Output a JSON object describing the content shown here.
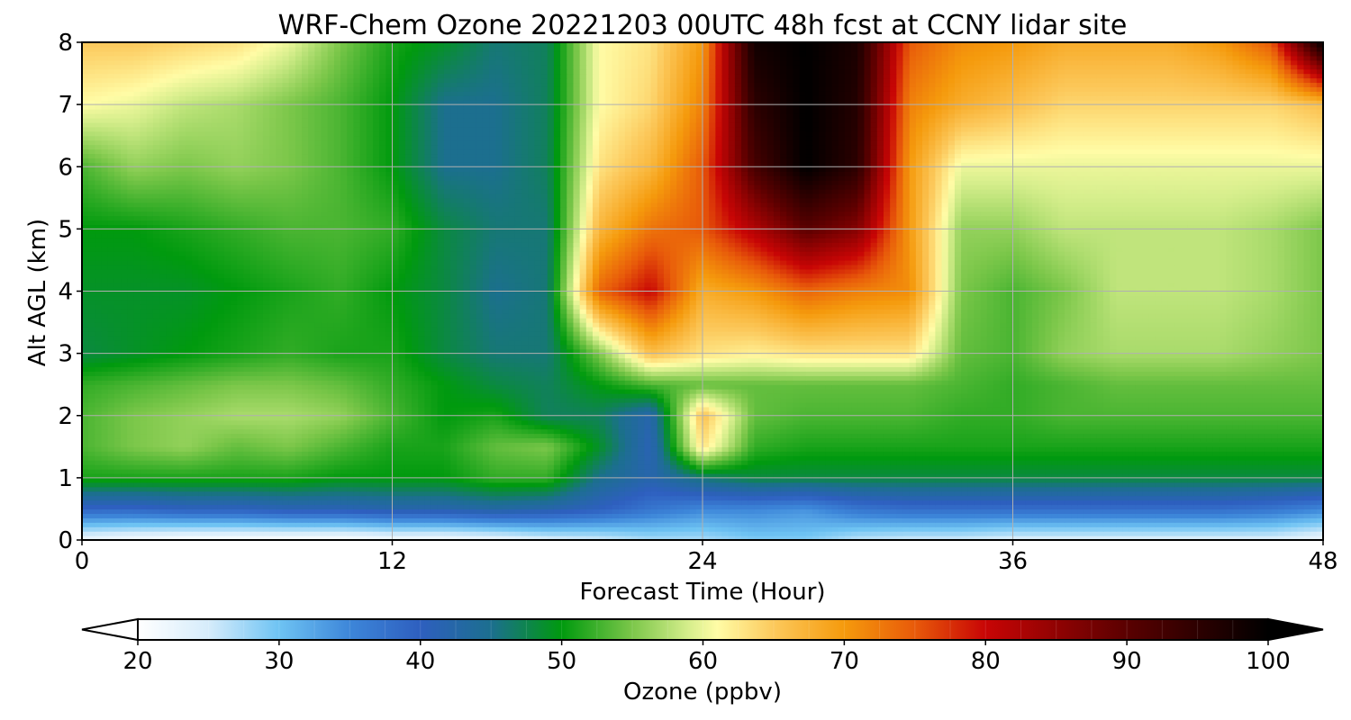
{
  "chart_data": {
    "type": "heatmap",
    "title": "WRF-Chem Ozone  20221203 00UTC 48h fcst at CCNY lidar site",
    "xlabel": "Forecast Time (Hour)",
    "ylabel": "Alt AGL (km)",
    "xlim": [
      0,
      48
    ],
    "ylim": [
      0,
      8
    ],
    "x_ticks": [
      "0",
      "12",
      "24",
      "36",
      "48"
    ],
    "y_ticks": [
      "0",
      "1",
      "2",
      "3",
      "4",
      "5",
      "6",
      "7",
      "8"
    ],
    "grid": true,
    "colorbar": {
      "label": "Ozone  (ppbv)",
      "range": [
        20,
        100
      ],
      "extend": "both",
      "ticks": [
        "20",
        "30",
        "40",
        "50",
        "60",
        "70",
        "80",
        "90",
        "100"
      ],
      "colors": [
        {
          "v": 20,
          "c": "#ffffff"
        },
        {
          "v": 25,
          "c": "#d6ecfb"
        },
        {
          "v": 30,
          "c": "#6ec3f3"
        },
        {
          "v": 35,
          "c": "#3d86d9"
        },
        {
          "v": 40,
          "c": "#2e5fbf"
        },
        {
          "v": 45,
          "c": "#1c6f8f"
        },
        {
          "v": 50,
          "c": "#009a0e"
        },
        {
          "v": 55,
          "c": "#7cc74a"
        },
        {
          "v": 59,
          "c": "#d6ee8c"
        },
        {
          "v": 61,
          "c": "#fffca6"
        },
        {
          "v": 65,
          "c": "#fcc95c"
        },
        {
          "v": 70,
          "c": "#f59a0c"
        },
        {
          "v": 75,
          "c": "#e85a0a"
        },
        {
          "v": 80,
          "c": "#c80505"
        },
        {
          "v": 90,
          "c": "#5a0000"
        },
        {
          "v": 100,
          "c": "#000000"
        }
      ]
    },
    "x": [
      0,
      2,
      4,
      6,
      8,
      10,
      12,
      14,
      16,
      18,
      20,
      22,
      24,
      26,
      28,
      30,
      32,
      34,
      36,
      38,
      40,
      42,
      44,
      46,
      48
    ],
    "y": [
      0,
      0.5,
      1,
      1.5,
      2,
      2.5,
      3,
      4,
      5,
      6,
      7,
      8
    ],
    "z": [
      [
        22,
        21,
        20,
        20,
        20,
        20,
        21,
        21,
        22,
        24,
        25,
        27,
        27,
        29,
        29,
        26,
        25,
        25,
        24,
        24,
        24,
        24,
        24,
        24,
        22
      ],
      [
        39,
        39,
        40,
        40,
        41,
        41,
        42,
        42,
        43,
        42,
        40,
        37,
        35,
        35,
        34,
        37,
        38,
        38,
        38,
        38,
        38,
        38,
        38,
        37,
        35
      ],
      [
        51,
        51,
        51,
        51,
        51,
        50,
        50,
        50,
        52,
        52,
        45,
        42,
        46,
        48,
        48,
        48,
        48,
        48,
        48,
        48,
        48,
        48,
        48,
        48,
        48
      ],
      [
        53,
        55,
        56,
        54,
        55,
        53,
        51,
        51,
        54,
        55,
        49,
        41,
        63,
        52,
        51,
        51,
        51,
        51,
        51,
        51,
        51,
        51,
        51,
        51,
        51
      ],
      [
        53,
        55,
        56,
        57,
        57,
        56,
        53,
        50,
        51,
        47,
        47,
        42,
        66,
        54,
        53,
        53,
        53,
        52,
        52,
        53,
        53,
        53,
        53,
        53,
        53
      ],
      [
        52,
        53,
        54,
        55,
        55,
        54,
        52,
        50,
        48,
        47,
        50,
        53,
        54,
        54,
        54,
        54,
        54,
        53,
        52,
        53,
        54,
        54,
        54,
        54,
        54
      ],
      [
        48,
        49,
        50,
        51,
        52,
        51,
        51,
        48,
        46,
        46,
        55,
        66,
        63,
        62,
        63,
        63,
        63,
        54,
        53,
        56,
        57,
        57,
        57,
        56,
        55
      ],
      [
        49,
        49,
        49,
        50,
        51,
        52,
        50,
        48,
        45,
        46,
        74,
        80,
        68,
        70,
        74,
        72,
        71,
        55,
        53,
        55,
        58,
        58,
        58,
        57,
        55
      ],
      [
        50,
        50,
        51,
        52,
        53,
        53,
        52,
        48,
        46,
        46,
        67,
        73,
        75,
        82,
        90,
        86,
        70,
        56,
        56,
        58,
        58,
        58,
        58,
        57,
        55
      ],
      [
        53,
        56,
        55,
        56,
        55,
        53,
        50,
        45,
        45,
        47,
        63,
        67,
        75,
        92,
        100,
        95,
        70,
        60,
        60,
        60,
        60,
        60,
        60,
        60,
        60
      ],
      [
        61,
        60,
        58,
        57,
        55,
        53,
        50,
        45,
        45,
        47,
        61,
        64,
        72,
        95,
        100,
        96,
        72,
        68,
        66,
        64,
        64,
        64,
        64,
        64,
        66
      ],
      [
        65,
        65,
        64,
        63,
        60,
        55,
        51,
        49,
        46,
        47,
        61,
        63,
        70,
        98,
        100,
        97,
        75,
        71,
        70,
        68,
        68,
        68,
        70,
        75,
        100
      ]
    ]
  }
}
